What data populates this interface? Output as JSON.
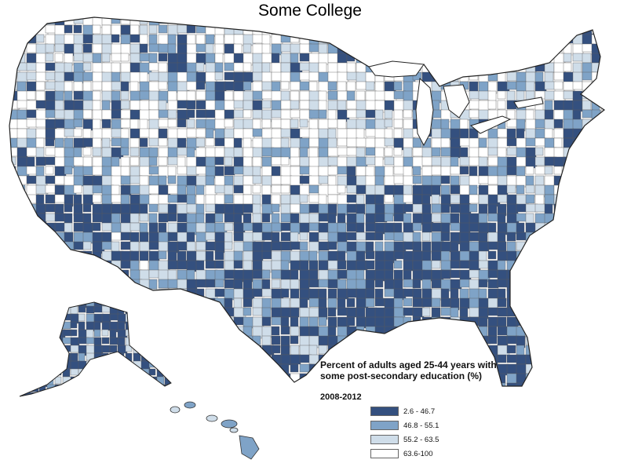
{
  "title": "Some College",
  "legend": {
    "title_line1": "Percent of adults aged 25-44 years with",
    "title_line2": "some post-secondary education (%)",
    "period": "2008-2012",
    "classes": [
      {
        "label": "2.6 - 46.7",
        "color": "#34507f"
      },
      {
        "label": "46.8 - 55.1",
        "color": "#7fa3c7"
      },
      {
        "label": "55.2 - 63.5",
        "color": "#cfdde9"
      },
      {
        "label": "63.6-100",
        "color": "#ffffff"
      }
    ]
  },
  "colors": {
    "border": "#5a5a5a",
    "state_border": "#222222"
  }
}
